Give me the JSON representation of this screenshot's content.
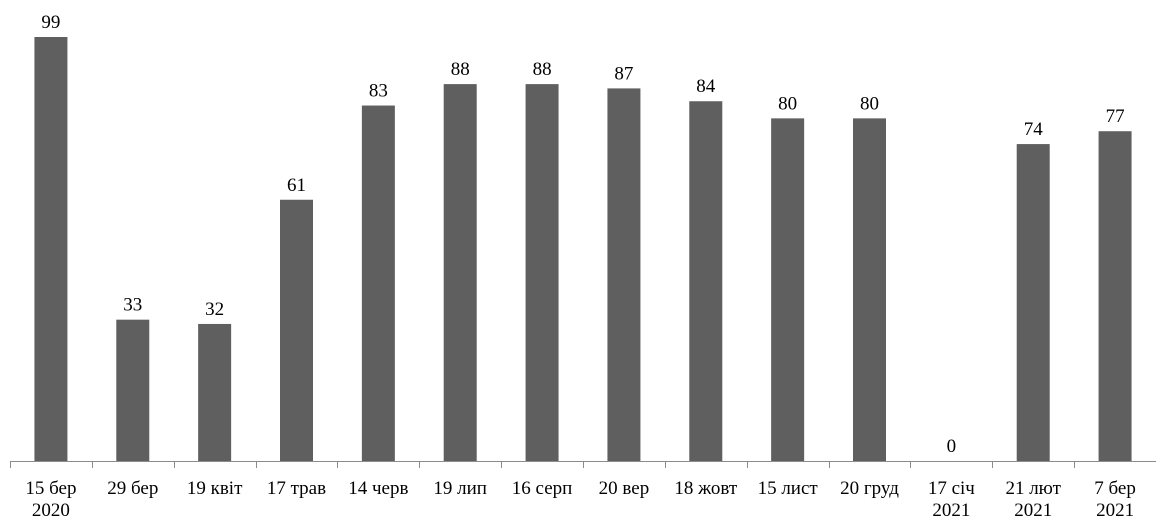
{
  "chart_data": {
    "type": "bar",
    "title": "",
    "xlabel": "",
    "ylabel": "",
    "ylim": [
      0,
      99
    ],
    "grid": false,
    "legend": "none",
    "bar_color": "#5f5f5f",
    "axis_color": "#8c8c8c",
    "categories": [
      [
        "15 бер",
        "2020"
      ],
      [
        "29 бер"
      ],
      [
        "19 квіт"
      ],
      [
        "17 трав"
      ],
      [
        "14 черв"
      ],
      [
        "19 лип"
      ],
      [
        "16 серп"
      ],
      [
        "20 вер"
      ],
      [
        "18 жовт"
      ],
      [
        "15 лист"
      ],
      [
        "20 груд"
      ],
      [
        "17 січ",
        "2021"
      ],
      [
        "21 лют",
        "2021"
      ],
      [
        "7 бер",
        "2021"
      ]
    ],
    "values": [
      99,
      33,
      32,
      61,
      83,
      88,
      88,
      87,
      84,
      80,
      80,
      0,
      74,
      77
    ]
  }
}
